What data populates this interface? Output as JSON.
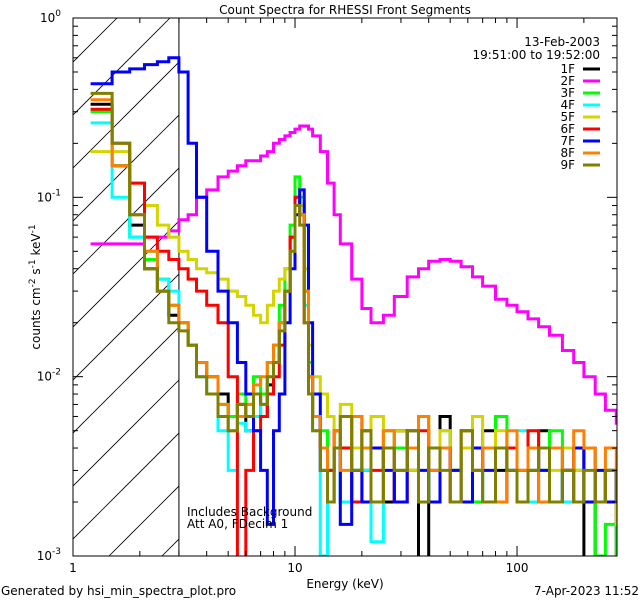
{
  "chart_data": {
    "type": "line",
    "title": "Count Spectra for RHESSI Front Segments",
    "xlabel": "Energy (keV)",
    "ylabel_parts": [
      "counts cm",
      "-2",
      " s",
      "-1",
      " keV",
      "-1"
    ],
    "xscale": "log",
    "yscale": "log",
    "xlim": [
      1,
      282
    ],
    "ylim": [
      0.001,
      1
    ],
    "x_ticks": [
      {
        "v": 1,
        "label": "1"
      },
      {
        "v": 10,
        "label": "10"
      },
      {
        "v": 100,
        "label": "100"
      }
    ],
    "y_ticks": [
      {
        "v": 1,
        "base": "10",
        "exp": "0"
      },
      {
        "v": 0.1,
        "base": "10",
        "exp": "-1"
      },
      {
        "v": 0.01,
        "base": "10",
        "exp": "-2"
      },
      {
        "v": 0.001,
        "base": "10",
        "exp": "-3"
      }
    ],
    "hatched_region_max_energy": 3,
    "date": "13-Feb-2003",
    "time_range": "19:51:00 to 19:52:00",
    "annotations": [
      "Includes Background",
      "Att A0, FDecim 1"
    ],
    "legend_position": "top-right",
    "energies": [
      1.2,
      1.5,
      1.8,
      2.1,
      2.4,
      2.7,
      3.0,
      3.3,
      3.6,
      4.0,
      4.5,
      5.0,
      5.5,
      6.0,
      6.5,
      7.0,
      7.5,
      8.0,
      8.5,
      9.0,
      9.5,
      10.0,
      10.5,
      11.0,
      11.5,
      12.0,
      13,
      14,
      15,
      16,
      18,
      20,
      22,
      25,
      28,
      32,
      36,
      40,
      45,
      50,
      56,
      63,
      70,
      80,
      90,
      100,
      112,
      125,
      140,
      160,
      180,
      200,
      225,
      250,
      280
    ],
    "series": [
      {
        "name": "1F",
        "color": "#000000",
        "values": [
          0.33,
          0.15,
          0.07,
          0.04,
          0.03,
          0.022,
          0.02,
          0.015,
          0.012,
          0.01,
          0.008,
          0.006,
          0.007,
          0.005,
          0.008,
          0.006,
          0.009,
          0.012,
          0.02,
          0.03,
          0.06,
          0.1,
          0.09,
          0.03,
          0.01,
          0.006,
          0.004,
          0.003,
          0.005,
          0.002,
          0.006,
          0.003,
          0.004,
          0.002,
          0.005,
          0.003,
          0.0008,
          0.004,
          0.006,
          0.003,
          0.004,
          0.002,
          0.005,
          0.003,
          0.004,
          0.002,
          0.003,
          0.005,
          0.002,
          0.003,
          0.004,
          0.0008,
          0.002,
          0.003,
          0.001
        ]
      },
      {
        "name": "2F",
        "color": "#ff00ff",
        "values": [
          0.055,
          0.055,
          0.055,
          0.06,
          0.06,
          0.065,
          0.075,
          0.08,
          0.1,
          0.11,
          0.13,
          0.14,
          0.15,
          0.16,
          0.16,
          0.17,
          0.18,
          0.2,
          0.21,
          0.22,
          0.23,
          0.24,
          0.25,
          0.25,
          0.24,
          0.22,
          0.18,
          0.12,
          0.08,
          0.055,
          0.035,
          0.024,
          0.02,
          0.022,
          0.028,
          0.036,
          0.04,
          0.044,
          0.045,
          0.044,
          0.041,
          0.036,
          0.032,
          0.027,
          0.025,
          0.023,
          0.021,
          0.019,
          0.017,
          0.014,
          0.012,
          0.01,
          0.008,
          0.0065,
          0.0055
        ]
      },
      {
        "name": "3F",
        "color": "#00ff00",
        "values": [
          0.3,
          0.15,
          0.06,
          0.045,
          0.035,
          0.025,
          0.02,
          0.015,
          0.012,
          0.01,
          0.007,
          0.006,
          0.008,
          0.007,
          0.01,
          0.008,
          0.012,
          0.015,
          0.025,
          0.04,
          0.07,
          0.13,
          0.1,
          0.03,
          0.012,
          0.006,
          0.005,
          0.003,
          0.004,
          0.006,
          0.003,
          0.004,
          0.002,
          0.005,
          0.004,
          0.003,
          0.006,
          0.002,
          0.004,
          0.003,
          0.005,
          0.002,
          0.004,
          0.006,
          0.003,
          0.002,
          0.004,
          0.003,
          0.005,
          0.002,
          0.003,
          0.002,
          0.001,
          0.0015,
          0.001
        ]
      },
      {
        "name": "4F",
        "color": "#00ffff",
        "values": [
          0.26,
          0.1,
          0.06,
          0.05,
          0.035,
          0.03,
          0.02,
          0.015,
          0.01,
          0.008,
          0.005,
          0.003,
          0.0055,
          0.005,
          0.006,
          0.007,
          0.01,
          0.012,
          0.02,
          0.03,
          0.05,
          0.09,
          0.08,
          0.025,
          0.008,
          0.005,
          0.001,
          0.003,
          0.005,
          0.002,
          0.004,
          0.003,
          0.0012,
          0.005,
          0.003,
          0.004,
          0.002,
          0.003,
          0.005,
          0.002,
          0.004,
          0.003,
          0.002,
          0.004,
          0.003,
          0.005,
          0.002,
          0.003,
          0.004,
          0.002,
          0.003,
          0.004,
          0.002,
          0.003,
          0.002
        ]
      },
      {
        "name": "5F",
        "color": "#d4d400",
        "values": [
          0.18,
          0.18,
          0.12,
          0.09,
          0.07,
          0.06,
          0.05,
          0.045,
          0.04,
          0.038,
          0.035,
          0.03,
          0.028,
          0.025,
          0.022,
          0.02,
          0.025,
          0.03,
          0.035,
          0.04,
          0.06,
          0.1,
          0.09,
          0.04,
          0.015,
          0.01,
          0.008,
          0.006,
          0.005,
          0.007,
          0.004,
          0.005,
          0.006,
          0.004,
          0.005,
          0.003,
          0.006,
          0.004,
          0.005,
          0.003,
          0.004,
          0.006,
          0.003,
          0.005,
          0.004,
          0.003,
          0.005,
          0.004,
          0.003,
          0.004,
          0.003,
          0.002,
          0.003,
          0.002,
          0.0015
        ]
      },
      {
        "name": "6F",
        "color": "#ff0000",
        "values": [
          0.31,
          0.2,
          0.12,
          0.06,
          0.05,
          0.045,
          0.04,
          0.035,
          0.03,
          0.025,
          0.02,
          0.01,
          0.0005,
          0.003,
          0.005,
          0.006,
          0.008,
          0.01,
          0.015,
          0.03,
          0.06,
          0.1,
          0.08,
          0.02,
          0.008,
          0.006,
          0.004,
          0.003,
          0.005,
          0.004,
          0.002,
          0.005,
          0.003,
          0.004,
          0.002,
          0.004,
          0.005,
          0.003,
          0.004,
          0.002,
          0.005,
          0.003,
          0.004,
          0.002,
          0.004,
          0.003,
          0.005,
          0.002,
          0.004,
          0.003,
          0.002,
          0.004,
          0.002,
          0.003,
          0.002
        ]
      },
      {
        "name": "7F",
        "color": "#0000ff",
        "values": [
          0.43,
          0.5,
          0.52,
          0.55,
          0.57,
          0.6,
          0.5,
          0.2,
          0.1,
          0.05,
          0.03,
          0.02,
          0.012,
          0.008,
          0.005,
          0.003,
          0.0015,
          0.005,
          0.008,
          0.02,
          0.04,
          0.08,
          0.11,
          0.07,
          0.02,
          0.008,
          0.003,
          0.002,
          0.004,
          0.0015,
          0.003,
          0.002,
          0.004,
          0.003,
          0.002,
          0.005,
          0.003,
          0.002,
          0.004,
          0.003,
          0.002,
          0.004,
          0.003,
          0.002,
          0.003,
          0.002,
          0.004,
          0.003,
          0.002,
          0.003,
          0.004,
          0.002,
          0.003,
          0.002,
          0.003
        ]
      },
      {
        "name": "8F",
        "color": "#ff8000",
        "values": [
          0.35,
          0.15,
          0.08,
          0.05,
          0.03,
          0.025,
          0.02,
          0.015,
          0.012,
          0.01,
          0.007,
          0.005,
          0.006,
          0.007,
          0.009,
          0.01,
          0.012,
          0.015,
          0.02,
          0.03,
          0.05,
          0.09,
          0.08,
          0.03,
          0.01,
          0.006,
          0.004,
          0.002,
          0.005,
          0.003,
          0.006,
          0.004,
          0.002,
          0.005,
          0.003,
          0.004,
          0.006,
          0.003,
          0.004,
          0.002,
          0.005,
          0.003,
          0.004,
          0.002,
          0.005,
          0.003,
          0.004,
          0.002,
          0.004,
          0.003,
          0.005,
          0.004,
          0.002,
          0.004,
          0.003
        ]
      },
      {
        "name": "9F",
        "color": "#808000",
        "values": [
          0.38,
          0.2,
          0.08,
          0.04,
          0.03,
          0.02,
          0.018,
          0.015,
          0.01,
          0.008,
          0.006,
          0.005,
          0.007,
          0.006,
          0.008,
          0.007,
          0.01,
          0.012,
          0.018,
          0.03,
          0.05,
          0.09,
          0.07,
          0.02,
          0.008,
          0.005,
          0.003,
          0.002,
          0.004,
          0.006,
          0.003,
          0.005,
          0.002,
          0.004,
          0.003,
          0.005,
          0.002,
          0.004,
          0.003,
          0.002,
          0.005,
          0.003,
          0.002,
          0.004,
          0.003,
          0.002,
          0.003,
          0.004,
          0.002,
          0.003,
          0.002,
          0.003,
          0.002,
          0.003,
          0.002
        ]
      }
    ]
  },
  "footer": {
    "left": "Generated by hsi_min_spectra_plot.pro",
    "right": "7-Apr-2023 11:52"
  }
}
